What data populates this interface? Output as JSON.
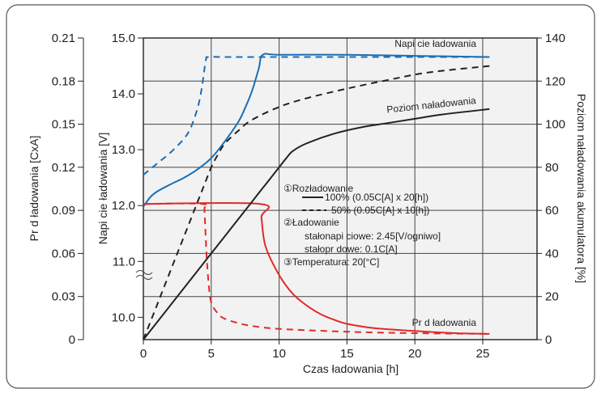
{
  "chart_data": {
    "type": "line",
    "xlabel": "Czas ładowania [h]",
    "ylabel_current": "Pr d ładowania [CxA]",
    "ylabel_voltage": "Napi cie ładowania [V]",
    "ylabel_charge": "Poziom naładowania akumulatora [%]",
    "xlim": [
      0,
      29
    ],
    "x_ticks": [
      "0",
      "5",
      "10",
      "15",
      "20",
      "25"
    ],
    "x_tick_values": [
      0,
      5,
      10,
      15,
      20,
      25
    ],
    "current_axis": {
      "range": [
        0,
        0.21
      ],
      "ticks": [
        "0",
        "0.03",
        "0.06",
        "0.09",
        "0.12",
        "0.15",
        "0.18",
        "0.21"
      ],
      "tick_values": [
        0,
        0.03,
        0.06,
        0.09,
        0.12,
        0.15,
        0.18,
        0.21
      ]
    },
    "voltage_axis": {
      "range": [
        9.6,
        15.0
      ],
      "visible_from": 10.0,
      "ticks": [
        "10.0",
        "11.0",
        "12.0",
        "13.0",
        "14.0",
        "15.0"
      ],
      "tick_values": [
        10,
        11,
        12,
        13,
        14,
        15
      ]
    },
    "charge_axis": {
      "range": [
        0,
        140
      ],
      "ticks": [
        "0",
        "20",
        "40",
        "60",
        "80",
        "100",
        "120",
        "140"
      ],
      "tick_values": [
        0,
        20,
        40,
        60,
        80,
        100,
        120,
        140
      ]
    },
    "grid": true,
    "series": [
      {
        "axis": "voltage",
        "color": "#1a6fb5",
        "dash": "solid",
        "x": [
          0,
          0.5,
          1,
          2,
          3,
          4,
          5,
          6,
          7,
          7.5,
          8,
          8.5,
          8.8,
          10,
          15,
          20,
          25.5
        ],
        "y": [
          11.98,
          12.15,
          12.25,
          12.38,
          12.5,
          12.65,
          12.85,
          13.15,
          13.5,
          13.75,
          14.05,
          14.45,
          14.7,
          14.7,
          14.7,
          14.68,
          14.66
        ]
      },
      {
        "axis": "voltage",
        "color": "#1a6fb5",
        "dash": "dashed",
        "x": [
          0,
          1,
          2,
          3,
          3.5,
          4,
          4.3,
          4.6,
          4.8,
          6,
          10,
          20,
          25.5
        ],
        "y": [
          12.55,
          12.75,
          12.95,
          13.2,
          13.4,
          13.75,
          14.1,
          14.6,
          14.66,
          14.66,
          14.66,
          14.66,
          14.66
        ]
      },
      {
        "axis": "current",
        "color": "#e02a2a",
        "dash": "solid",
        "x": [
          0,
          8.6,
          8.7,
          9,
          10,
          11,
          12,
          13,
          14,
          15,
          17,
          20,
          23,
          25.5
        ],
        "y": [
          0.0945,
          0.0945,
          0.085,
          0.065,
          0.045,
          0.032,
          0.024,
          0.018,
          0.014,
          0.011,
          0.008,
          0.006,
          0.0045,
          0.004
        ]
      },
      {
        "axis": "current",
        "color": "#e02a2a",
        "dash": "dashed",
        "x": [
          0,
          4.4,
          4.5,
          4.65,
          4.8,
          5,
          5.5,
          6,
          7,
          8,
          10,
          15,
          20,
          25.5
        ],
        "y": [
          0.0945,
          0.0945,
          0.09,
          0.06,
          0.04,
          0.026,
          0.018,
          0.0145,
          0.0115,
          0.0095,
          0.0075,
          0.0055,
          0.0045,
          0.004
        ]
      },
      {
        "axis": "charge",
        "color": "#222222",
        "dash": "solid",
        "x": [
          0,
          2,
          4,
          6,
          8,
          9,
          10,
          10.5,
          11,
          12,
          14,
          16,
          18,
          20,
          22,
          25.5
        ],
        "y": [
          0,
          16,
          32,
          48,
          64,
          72,
          80,
          84,
          87.5,
          91,
          95.5,
          98.5,
          100.5,
          102.5,
          104.5,
          107
        ]
      },
      {
        "axis": "charge",
        "color": "#222222",
        "dash": "dashed",
        "x": [
          0,
          1,
          2,
          3,
          4,
          4.5,
          5,
          5.5,
          6,
          7,
          8,
          10,
          12,
          15,
          18,
          21,
          25.5
        ],
        "y": [
          0,
          16,
          32,
          48,
          64,
          72,
          80,
          86,
          91,
          97,
          102,
          108,
          112,
          116.5,
          120.5,
          124,
          127
        ]
      }
    ],
    "annotations": {
      "voltage_curve": "Napi cie ładowania",
      "charge_curve": "Poziom naładowania",
      "current_curve": "Pr d ładowania",
      "legend_1": "①Rozładowanie",
      "legend_1a": "100% (0.05C[A] x 20[h])",
      "legend_1b": "50% (0.05C[A] x 10[h])",
      "legend_2": "②Ładowanie",
      "legend_2a": "stałonapi ciowe: 2.45[V/ogniwo]",
      "legend_2b": "stałopr dowe: 0.1C[A]",
      "legend_3": "③Temperatura: 20[°C]"
    }
  }
}
